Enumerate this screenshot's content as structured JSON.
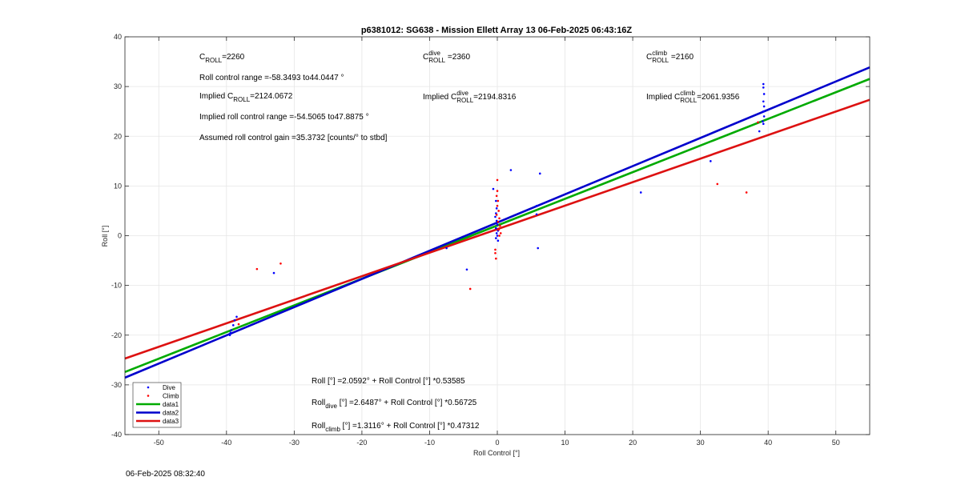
{
  "chart_data": {
    "type": "scatter",
    "title": "p6381012: SG638 - Mission Ellett Array 13 06-Feb-2025 06:43:16Z",
    "xlabel": "Roll Control [°]",
    "ylabel": "Roll [°]",
    "xlim": [
      -55,
      55
    ],
    "ylim": [
      -40,
      40
    ],
    "xticks": [
      "-50",
      "-40",
      "-30",
      "-20",
      "-10",
      "0",
      "10",
      "20",
      "30",
      "40",
      "50"
    ],
    "yticks": [
      "-40",
      "-30",
      "-20",
      "-10",
      "0",
      "10",
      "20",
      "30",
      "40"
    ],
    "grid": true,
    "legend_placement": "bottom-left",
    "legend": [
      {
        "label": "Dive",
        "kind": "marker",
        "color": "#0000ff"
      },
      {
        "label": "Climb",
        "kind": "marker",
        "color": "#ff0000"
      },
      {
        "label": "data1",
        "kind": "line",
        "color": "#00aa00"
      },
      {
        "label": "data2",
        "kind": "line",
        "color": "#0000cc"
      },
      {
        "label": "data3",
        "kind": "line",
        "color": "#dd1111"
      }
    ],
    "series": [
      {
        "name": "Dive",
        "type": "scatter",
        "color": "#0000ff",
        "points": [
          [
            -39.5,
            -20
          ],
          [
            -39.3,
            -19
          ],
          [
            -39,
            -18
          ],
          [
            -38.8,
            -17
          ],
          [
            -38.5,
            -16.3
          ],
          [
            -39.4,
            -19.5
          ],
          [
            -33,
            -7.5
          ],
          [
            -4.5,
            -6.8
          ],
          [
            -7.5,
            -2.5
          ],
          [
            -0.6,
            9.4
          ],
          [
            -0.2,
            7
          ],
          [
            -0.1,
            5.5
          ],
          [
            -0.2,
            4.5
          ],
          [
            -0.3,
            3.8
          ],
          [
            -0.1,
            3
          ],
          [
            0,
            2.2
          ],
          [
            -0.2,
            1.5
          ],
          [
            0.1,
            1
          ],
          [
            -0.1,
            0.5
          ],
          [
            0,
            0
          ],
          [
            -0.2,
            -0.5
          ],
          [
            0.1,
            -1
          ],
          [
            2,
            13.2
          ],
          [
            6.3,
            12.5
          ],
          [
            5.8,
            6
          ],
          [
            5.8,
            4.3
          ],
          [
            6,
            -2.5
          ],
          [
            21.2,
            8.7
          ],
          [
            31.5,
            15
          ],
          [
            39.3,
            30.5
          ],
          [
            39.3,
            29.8
          ],
          [
            39.4,
            28.5
          ],
          [
            39.3,
            27
          ],
          [
            39.4,
            26
          ],
          [
            39.3,
            25
          ],
          [
            39.4,
            24
          ],
          [
            39.2,
            23
          ],
          [
            38.7,
            21
          ],
          [
            39.3,
            22.5
          ]
        ]
      },
      {
        "name": "Climb",
        "type": "scatter",
        "color": "#ff0000",
        "points": [
          [
            -38.2,
            -17.8
          ],
          [
            -35.5,
            -6.7
          ],
          [
            -32,
            -5.6
          ],
          [
            -4,
            -10.7
          ],
          [
            0,
            11.2
          ],
          [
            0,
            9
          ],
          [
            -0.1,
            8
          ],
          [
            0.1,
            7
          ],
          [
            0,
            6
          ],
          [
            0.2,
            5
          ],
          [
            -0.1,
            4.2
          ],
          [
            0.3,
            3.5
          ],
          [
            0.1,
            2.8
          ],
          [
            0.4,
            2
          ],
          [
            0.2,
            1.2
          ],
          [
            0.5,
            0.5
          ],
          [
            0.3,
            0
          ],
          [
            -0.3,
            -2.8
          ],
          [
            -0.2,
            -4.6
          ],
          [
            -0.3,
            -3.5
          ],
          [
            32.5,
            10.4
          ],
          [
            36.8,
            8.7
          ],
          [
            38.5,
            22.8
          ]
        ]
      },
      {
        "name": "data1",
        "type": "line",
        "color": "#00aa00",
        "intercept": 2.0592,
        "slope": 0.53585
      },
      {
        "name": "data2",
        "type": "line",
        "color": "#0000cc",
        "intercept": 2.6487,
        "slope": 0.56725
      },
      {
        "name": "data3",
        "type": "line",
        "color": "#dd1111",
        "intercept": 1.3116,
        "slope": 0.47312
      }
    ],
    "annotations": {
      "c_roll": {
        "pre": "C",
        "sub": "ROLL",
        "post": "=2260"
      },
      "range": "Roll control range =-58.3493 to44.0447 °",
      "implied_c_roll": {
        "pre": "Implied C",
        "sub": "ROLL",
        "post": "=2124.0672"
      },
      "implied_range": "Implied roll control range =-54.5065 to47.8875 °",
      "gain": "Assumed roll control gain =35.3732 [counts/° to stbd]",
      "c_roll_dive": {
        "pre": "C",
        "sup": "dive",
        "sub": "ROLL",
        "post": " =2360"
      },
      "implied_c_roll_dive": {
        "pre": "Implied C",
        "sup": "dive",
        "sub": "ROLL",
        "post": "=2194.8316"
      },
      "c_roll_climb": {
        "pre": "C",
        "sup": "climb",
        "sub": "ROLL",
        "post": " =2160"
      },
      "implied_c_roll_climb": {
        "pre": "Implied C",
        "sup": "climb",
        "sub": "ROLL",
        "post": "=2061.9356"
      },
      "eq_all": {
        "pre": "Roll [°] =2.0592° + Roll Control [°] *0.53585"
      },
      "eq_dive": {
        "pre": "Roll",
        "sub": "dive",
        "post": " [°] =2.6487° + Roll Control [°] *0.56725"
      },
      "eq_climb": {
        "pre": "Roll",
        "sub": "climb",
        "post": " [°] =1.3116° + Roll Control [°] *0.47312"
      }
    }
  },
  "footer_timestamp": "06-Feb-2025 08:32:40"
}
